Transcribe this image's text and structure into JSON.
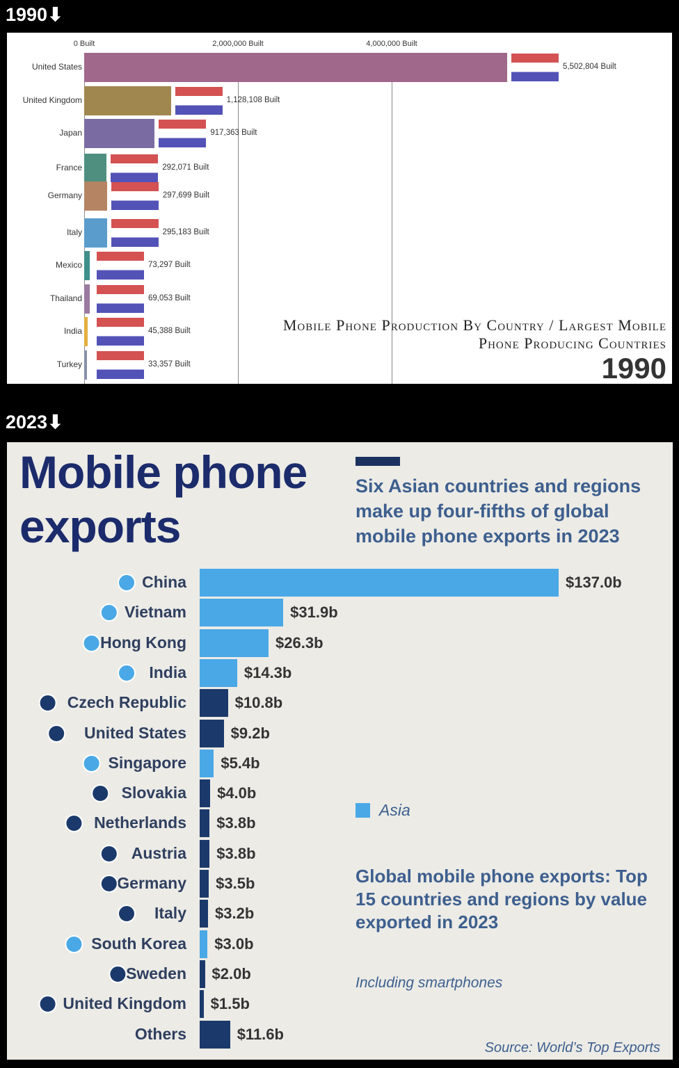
{
  "headers": {
    "top": "1990⬇",
    "bottom": "2023⬇"
  },
  "chart_data": [
    {
      "type": "bar",
      "orientation": "horizontal",
      "title": "Mobile Phone Production By Country / Largest Mobile Phone Producing Countries",
      "year": "1990",
      "xticks": [
        "0 Built",
        "2,000,000 Built",
        "4,000,000 Built"
      ],
      "xlim": [
        0,
        7700000
      ],
      "grid": true,
      "categories": [
        "United States",
        "United Kingdom",
        "Japan",
        "France",
        "Germany",
        "Italy",
        "Mexico",
        "Thailand",
        "India",
        "Turkey"
      ],
      "values": [
        5502804,
        1128108,
        917363,
        292071,
        297699,
        295183,
        73297,
        69053,
        45388,
        33357
      ],
      "labels": [
        "5,502,804 Built",
        "1,128,108 Built",
        "917,363 Built",
        "292,071 Built",
        "297,699 Built",
        "295,183 Built",
        "73,297 Built",
        "69,053 Built",
        "45,388 Built",
        "33,357 Built"
      ],
      "colors": [
        "#a0688a",
        "#a0874f",
        "#7a6ca2",
        "#4f8f80",
        "#b58563",
        "#5a9ccb",
        "#3f8f8a",
        "#9a7aa0",
        "#e0b040",
        "#8890a8"
      ]
    },
    {
      "type": "bar",
      "orientation": "horizontal",
      "title": "Mobile phone exports",
      "subtitle": "Six Asian countries and regions make up four-fifths of global mobile phone exports in 2023",
      "categories": [
        "China",
        "Vietnam",
        "Hong Kong",
        "India",
        "Czech Republic",
        "United States",
        "Singapore",
        "Slovakia",
        "Netherlands",
        "Austria",
        "Germany",
        "Italy",
        "South Korea",
        "Sweden",
        "United Kingdom",
        "Others"
      ],
      "values": [
        137.0,
        31.9,
        26.3,
        14.3,
        10.8,
        9.2,
        5.4,
        4.0,
        3.8,
        3.8,
        3.5,
        3.2,
        3.0,
        2.0,
        1.5,
        11.6
      ],
      "labels": [
        "$137.0b",
        "$31.9b",
        "$26.3b",
        "$14.3b",
        "$10.8b",
        "$9.2b",
        "$5.4b",
        "$4.0b",
        "$3.8b",
        "$3.8b",
        "$3.5b",
        "$3.2b",
        "$3.0b",
        "$2.0b",
        "$1.5b",
        "$11.6b"
      ],
      "asia": [
        true,
        true,
        true,
        true,
        false,
        false,
        true,
        false,
        false,
        false,
        false,
        false,
        true,
        false,
        false,
        false
      ],
      "colors": {
        "asia": "#4aa8e6",
        "other": "#1b3a6b"
      },
      "legend": "Asia",
      "legend_position": "middle-right",
      "note_title": "Global mobile phone exports: Top 15 countries and regions by value exported in 2023",
      "note": "Including smartphones",
      "source": "Source: World’s Top Exports"
    }
  ]
}
